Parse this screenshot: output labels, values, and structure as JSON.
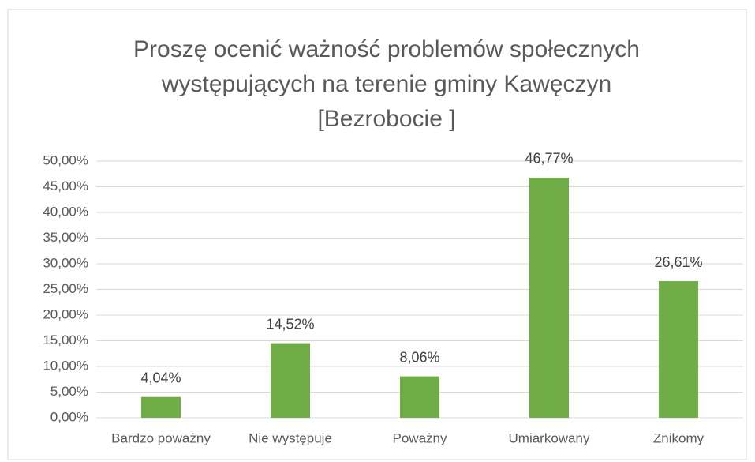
{
  "chart_data": {
    "type": "bar",
    "title": [
      "Proszę ocenić ważność problemów społecznych",
      "występujących na terenie gminy Kawęczyn",
      "[Bezrobocie ]"
    ],
    "categories": [
      "Bardzo poważny",
      "Nie występuje",
      "Poważny",
      "Umiarkowany",
      "Znikomy"
    ],
    "values": [
      4.04,
      14.52,
      8.06,
      46.77,
      26.61
    ],
    "value_labels": [
      "4,04%",
      "14,52%",
      "8,06%",
      "46,77%",
      "26,61%"
    ],
    "color": "#70ad47",
    "ylim": [
      0,
      50
    ],
    "yticks": [
      {
        "value": 0,
        "label": "0,00%"
      },
      {
        "value": 5,
        "label": "5,00%"
      },
      {
        "value": 10,
        "label": "10,00%"
      },
      {
        "value": 15,
        "label": "15,00%"
      },
      {
        "value": 20,
        "label": "20,00%"
      },
      {
        "value": 25,
        "label": "25,00%"
      },
      {
        "value": 30,
        "label": "30,00%"
      },
      {
        "value": 35,
        "label": "35,00%"
      },
      {
        "value": 40,
        "label": "40,00%"
      },
      {
        "value": 45,
        "label": "45,00%"
      },
      {
        "value": 50,
        "label": "50,00%"
      }
    ],
    "grid": true
  }
}
